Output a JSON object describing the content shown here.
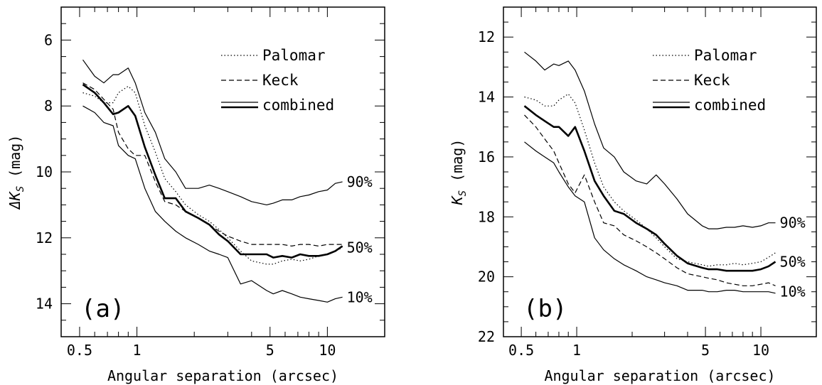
{
  "chart_data": [
    {
      "type": "line",
      "panel_label": "(a)",
      "xlabel": "Angular separation (arcsec)",
      "ylabel": "ΔK_S (mag)",
      "ylabel_main": "ΔK",
      "ylabel_sub": "S",
      "ylabel_unit": " (mag)",
      "xscale": "log",
      "xlim": [
        0.4,
        20
      ],
      "ylim": [
        15,
        5
      ],
      "y_inverted": true,
      "xticks": [
        0.5,
        1,
        5,
        10
      ],
      "xtick_labels": [
        "0.5",
        "1",
        "5",
        "10"
      ],
      "yticks": [
        6,
        8,
        10,
        12,
        14
      ],
      "ytick_labels": [
        "6",
        "8",
        "10",
        "12",
        "14"
      ],
      "grid": false,
      "legend_position": "top-right",
      "legend": [
        {
          "label": "Palomar",
          "style": "dotted"
        },
        {
          "label": "Keck",
          "style": "dashed"
        },
        {
          "label": "combined",
          "style": "solid"
        }
      ],
      "series": [
        {
          "style": "solid-thin",
          "label": "90%",
          "label_y": 10.3,
          "x": [
            0.52,
            0.6,
            0.67,
            0.75,
            0.8,
            0.9,
            0.98,
            1.1,
            1.25,
            1.4,
            1.6,
            1.8,
            2.1,
            2.4,
            2.7,
            3.0,
            3.5,
            4.0,
            4.8,
            5.2,
            5.8,
            6.5,
            7.2,
            8.0,
            9.0,
            10.0,
            11.0,
            12.0
          ],
          "y": [
            6.6,
            7.1,
            7.3,
            7.05,
            7.05,
            6.85,
            7.3,
            8.2,
            8.8,
            9.6,
            10.0,
            10.5,
            10.5,
            10.4,
            10.5,
            10.6,
            10.75,
            10.9,
            11.0,
            10.95,
            10.85,
            10.85,
            10.75,
            10.7,
            10.6,
            10.55,
            10.35,
            10.3
          ]
        },
        {
          "style": "dotted",
          "label": "",
          "x": [
            0.52,
            0.6,
            0.67,
            0.75,
            0.8,
            0.9,
            0.98,
            1.1,
            1.25,
            1.4,
            1.6,
            1.8,
            2.1,
            2.4,
            2.7,
            3.0,
            3.5,
            4.0,
            4.8,
            5.2,
            5.8,
            6.5,
            7.2,
            8.0,
            9.0,
            10.0,
            11.0,
            12.0
          ],
          "y": [
            7.6,
            7.7,
            7.9,
            7.9,
            7.6,
            7.4,
            7.6,
            8.6,
            9.4,
            10.2,
            10.6,
            11.0,
            11.3,
            11.5,
            11.75,
            12.0,
            12.4,
            12.7,
            12.8,
            12.8,
            12.7,
            12.65,
            12.7,
            12.65,
            12.55,
            12.5,
            12.4,
            12.3
          ]
        },
        {
          "style": "dashed",
          "label": "",
          "x": [
            0.52,
            0.6,
            0.67,
            0.75,
            0.8,
            0.9,
            0.98,
            1.1,
            1.25,
            1.4,
            1.6,
            1.8,
            2.1,
            2.4,
            2.7,
            3.0,
            3.5,
            4.0,
            4.8,
            5.2,
            5.8,
            6.5,
            7.2,
            8.0,
            9.0,
            10.0,
            11.0,
            12.0
          ],
          "y": [
            7.3,
            7.5,
            7.8,
            8.1,
            8.8,
            9.3,
            9.5,
            9.5,
            10.3,
            10.9,
            11.0,
            11.2,
            11.4,
            11.6,
            11.8,
            11.95,
            12.1,
            12.2,
            12.2,
            12.2,
            12.2,
            12.25,
            12.2,
            12.2,
            12.25,
            12.2,
            12.2,
            12.2
          ]
        },
        {
          "style": "solid-thick",
          "label": "50%",
          "label_y": 12.3,
          "x": [
            0.52,
            0.6,
            0.67,
            0.75,
            0.8,
            0.9,
            0.98,
            1.1,
            1.25,
            1.4,
            1.6,
            1.8,
            2.1,
            2.4,
            2.7,
            3.0,
            3.5,
            4.0,
            4.8,
            5.2,
            5.8,
            6.5,
            7.2,
            8.0,
            9.0,
            10.0,
            11.0,
            12.0
          ],
          "y": [
            7.35,
            7.6,
            7.9,
            8.25,
            8.2,
            8.0,
            8.3,
            9.25,
            10.1,
            10.8,
            10.8,
            11.2,
            11.4,
            11.6,
            11.9,
            12.1,
            12.5,
            12.5,
            12.5,
            12.6,
            12.55,
            12.6,
            12.5,
            12.55,
            12.55,
            12.5,
            12.4,
            12.25
          ]
        },
        {
          "style": "solid-thin",
          "label": "10%",
          "label_y": 13.8,
          "x": [
            0.52,
            0.6,
            0.67,
            0.75,
            0.8,
            0.9,
            0.98,
            1.1,
            1.25,
            1.4,
            1.6,
            1.8,
            2.1,
            2.4,
            2.7,
            3.0,
            3.5,
            4.0,
            4.8,
            5.2,
            5.8,
            6.5,
            7.2,
            8.0,
            9.0,
            10.0,
            11.0,
            12.0
          ],
          "y": [
            8.0,
            8.2,
            8.5,
            8.6,
            9.2,
            9.5,
            9.6,
            10.5,
            11.2,
            11.5,
            11.8,
            12.0,
            12.2,
            12.4,
            12.5,
            12.6,
            13.4,
            13.3,
            13.6,
            13.7,
            13.6,
            13.7,
            13.8,
            13.85,
            13.9,
            13.95,
            13.85,
            13.8
          ]
        }
      ]
    },
    {
      "type": "line",
      "panel_label": "(b)",
      "xlabel": "Angular separation (arcsec)",
      "ylabel": "K_S (mag)",
      "ylabel_main": "K",
      "ylabel_sub": "S",
      "ylabel_unit": " (mag)",
      "xscale": "log",
      "xlim": [
        0.4,
        20
      ],
      "ylim": [
        22,
        11
      ],
      "y_inverted": true,
      "xticks": [
        0.5,
        1,
        5,
        10
      ],
      "xtick_labels": [
        "0.5",
        "1",
        "5",
        "10"
      ],
      "yticks": [
        12,
        14,
        16,
        18,
        20,
        22
      ],
      "ytick_labels": [
        "12",
        "14",
        "16",
        "18",
        "20",
        "22"
      ],
      "grid": false,
      "legend_position": "top-right",
      "legend": [
        {
          "label": "Palomar",
          "style": "dotted"
        },
        {
          "label": "Keck",
          "style": "dashed"
        },
        {
          "label": "combined",
          "style": "solid"
        }
      ],
      "series": [
        {
          "style": "solid-thin",
          "label": "90%",
          "label_y": 18.2,
          "x": [
            0.52,
            0.6,
            0.67,
            0.75,
            0.8,
            0.9,
            0.98,
            1.1,
            1.25,
            1.4,
            1.6,
            1.8,
            2.1,
            2.4,
            2.7,
            3.0,
            3.5,
            4.0,
            4.8,
            5.2,
            5.8,
            6.5,
            7.2,
            8.0,
            9.0,
            10.0,
            11.0,
            12.0
          ],
          "y": [
            12.5,
            12.8,
            13.1,
            12.9,
            12.95,
            12.8,
            13.1,
            13.8,
            14.9,
            15.7,
            16.0,
            16.5,
            16.8,
            16.9,
            16.6,
            16.9,
            17.4,
            17.9,
            18.3,
            18.4,
            18.4,
            18.35,
            18.35,
            18.3,
            18.35,
            18.3,
            18.2,
            18.2
          ]
        },
        {
          "style": "dotted",
          "label": "",
          "x": [
            0.52,
            0.6,
            0.67,
            0.75,
            0.8,
            0.9,
            0.98,
            1.1,
            1.25,
            1.4,
            1.6,
            1.8,
            2.1,
            2.4,
            2.7,
            3.0,
            3.5,
            4.0,
            4.8,
            5.2,
            5.8,
            6.5,
            7.2,
            8.0,
            9.0,
            10.0,
            11.0,
            12.0
          ],
          "y": [
            14.0,
            14.1,
            14.3,
            14.3,
            14.1,
            13.9,
            14.2,
            15.1,
            16.2,
            17.0,
            17.5,
            17.8,
            18.1,
            18.4,
            18.7,
            19.0,
            19.4,
            19.5,
            19.6,
            19.65,
            19.6,
            19.6,
            19.55,
            19.6,
            19.55,
            19.5,
            19.35,
            19.2
          ]
        },
        {
          "style": "dashed",
          "label": "",
          "x": [
            0.52,
            0.6,
            0.67,
            0.75,
            0.8,
            0.9,
            0.98,
            1.1,
            1.25,
            1.4,
            1.6,
            1.8,
            2.1,
            2.4,
            2.7,
            3.0,
            3.5,
            4.0,
            4.8,
            5.2,
            5.8,
            6.5,
            7.2,
            8.0,
            9.0,
            10.0,
            11.0,
            12.0
          ],
          "y": [
            14.6,
            15.0,
            15.4,
            15.8,
            16.2,
            16.9,
            17.2,
            16.6,
            17.5,
            18.2,
            18.3,
            18.6,
            18.8,
            19.0,
            19.2,
            19.4,
            19.7,
            19.9,
            20.0,
            20.05,
            20.1,
            20.2,
            20.25,
            20.3,
            20.3,
            20.25,
            20.2,
            20.3
          ]
        },
        {
          "style": "solid-thick",
          "label": "50%",
          "label_y": 19.5,
          "x": [
            0.52,
            0.6,
            0.67,
            0.75,
            0.8,
            0.9,
            0.98,
            1.1,
            1.25,
            1.4,
            1.6,
            1.8,
            2.1,
            2.4,
            2.7,
            3.0,
            3.5,
            4.0,
            4.8,
            5.2,
            5.8,
            6.5,
            7.2,
            8.0,
            9.0,
            10.0,
            11.0,
            12.0
          ],
          "y": [
            14.3,
            14.6,
            14.8,
            15.0,
            15.0,
            15.3,
            15.0,
            15.8,
            16.8,
            17.3,
            17.8,
            17.9,
            18.2,
            18.4,
            18.6,
            18.9,
            19.3,
            19.55,
            19.7,
            19.75,
            19.75,
            19.8,
            19.8,
            19.8,
            19.8,
            19.75,
            19.65,
            19.5
          ]
        },
        {
          "style": "solid-thin",
          "label": "10%",
          "label_y": 20.5,
          "x": [
            0.52,
            0.6,
            0.67,
            0.75,
            0.8,
            0.9,
            0.98,
            1.1,
            1.25,
            1.4,
            1.6,
            1.8,
            2.1,
            2.4,
            2.7,
            3.0,
            3.5,
            4.0,
            4.8,
            5.2,
            5.8,
            6.5,
            7.2,
            8.0,
            9.0,
            10.0,
            11.0,
            12.0
          ],
          "y": [
            15.5,
            15.8,
            16.0,
            16.2,
            16.5,
            17.0,
            17.3,
            17.5,
            18.7,
            19.1,
            19.4,
            19.6,
            19.8,
            20.0,
            20.1,
            20.2,
            20.3,
            20.45,
            20.45,
            20.5,
            20.5,
            20.45,
            20.45,
            20.5,
            20.5,
            20.5,
            20.5,
            20.55
          ]
        }
      ]
    }
  ]
}
